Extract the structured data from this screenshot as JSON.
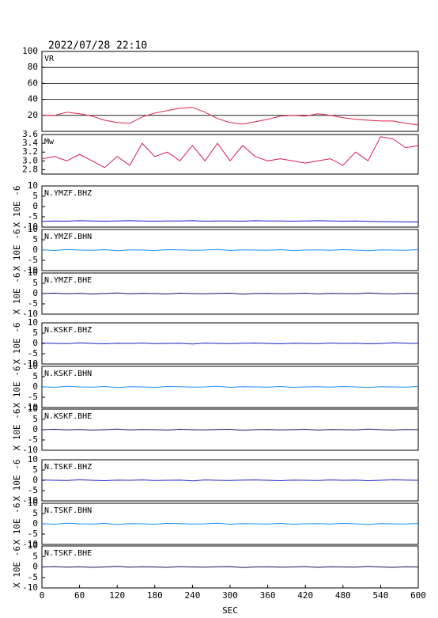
{
  "chart_data": {
    "type": "line",
    "title": "2022/07/28 22:10",
    "xlabel": "SEC",
    "xlim": [
      0,
      600
    ],
    "xticks": [
      0,
      60,
      120,
      180,
      240,
      300,
      360,
      420,
      480,
      540,
      600
    ],
    "x": [
      0,
      20,
      40,
      60,
      80,
      100,
      120,
      140,
      160,
      180,
      200,
      220,
      240,
      260,
      280,
      300,
      320,
      340,
      360,
      380,
      400,
      420,
      440,
      460,
      480,
      500,
      520,
      540,
      560,
      580,
      600
    ],
    "panels": [
      {
        "name": "VR",
        "color": "#e0204a",
        "ylim": [
          0,
          100
        ],
        "yticks": [
          20,
          40,
          60,
          80,
          100
        ],
        "grid": true,
        "values": [
          20,
          20,
          24,
          22,
          19,
          14,
          11,
          10,
          18,
          23,
          26,
          29,
          30,
          24,
          16,
          11,
          9,
          12,
          15,
          19,
          20,
          19,
          22,
          20,
          17,
          15,
          14,
          13,
          13,
          10,
          8
        ]
      },
      {
        "name": "Mw",
        "color": "#d81b50",
        "ylim": [
          2.7,
          3.6
        ],
        "yticks": [
          2.8,
          {
            "value": 3,
            "label": "3.0"
          },
          3.2,
          3.4,
          3.6
        ],
        "grid": false,
        "values": [
          3.05,
          3.1,
          3.0,
          3.15,
          3.0,
          2.85,
          3.1,
          2.9,
          3.4,
          3.1,
          3.2,
          3.0,
          3.35,
          3.0,
          3.4,
          3.0,
          3.35,
          3.1,
          3.0,
          3.05,
          3.0,
          2.95,
          3.0,
          3.05,
          2.9,
          3.2,
          3.0,
          3.55,
          3.5,
          3.3,
          3.35
        ]
      },
      {
        "name": "N.YMZF.BHZ",
        "ylabel": "X 10E -6",
        "color": "#1a1ac8",
        "ylim": [
          -10,
          10
        ],
        "yticks": [
          -10,
          -5,
          0,
          5,
          10
        ],
        "grid": false,
        "values": [
          -7.2,
          -7,
          -7.1,
          -6.9,
          -7,
          -7.1,
          -7,
          -6.9,
          -7,
          -7.1,
          -7,
          -7,
          -6.9,
          -7.1,
          -7,
          -7,
          -7.1,
          -6.9,
          -7,
          -7,
          -7.1,
          -7,
          -6.9,
          -7,
          -7.1,
          -7,
          -7.2,
          -7.3,
          -7.4,
          -7.5,
          -7.5
        ]
      },
      {
        "name": "N.YMZF.BHN",
        "ylabel": "X 10E -6",
        "color": "#1e90ff",
        "ylim": [
          -10,
          10
        ],
        "yticks": [
          -10,
          -5,
          0,
          5,
          10
        ],
        "grid": false,
        "values": [
          0.1,
          -0.2,
          0.3,
          0,
          -0.1,
          0.2,
          -0.3,
          0.1,
          0,
          -0.2,
          0.2,
          0.1,
          -0.1,
          0,
          0.3,
          -0.2,
          0.1,
          0,
          -0.1,
          0.2,
          -0.2,
          0,
          0.1,
          -0.1,
          0.2,
          0,
          -0.3,
          0.1,
          0,
          -0.1,
          0.2
        ]
      },
      {
        "name": "N.YMZF.BHE",
        "ylabel": "X 10E -6",
        "color": "#101060",
        "ylim": [
          -10,
          10
        ],
        "yticks": [
          -10,
          -5,
          0,
          5,
          10
        ],
        "grid": false,
        "values": [
          0,
          0.2,
          -0.1,
          0.1,
          -0.2,
          0,
          0.3,
          -0.1,
          0.1,
          0,
          -0.2,
          0.2,
          0,
          -0.1,
          0.1,
          0.2,
          -0.3,
          0,
          0.1,
          -0.1,
          0,
          0.2,
          -0.2,
          0.1,
          0,
          -0.1,
          0.3,
          0,
          -0.2,
          0.1,
          0
        ]
      },
      {
        "name": "N.KSKF.BHZ",
        "ylabel": "X 10E -6",
        "color": "#1a1ac8",
        "ylim": [
          -10,
          10
        ],
        "yticks": [
          -10,
          -5,
          0,
          5,
          10
        ],
        "grid": false,
        "values": [
          0.2,
          0,
          -0.1,
          0.3,
          0,
          -0.2,
          0.1,
          0,
          0.2,
          -0.1,
          0,
          0.1,
          -0.3,
          0.2,
          0,
          -0.1,
          0.1,
          0.2,
          0,
          -0.2,
          0.1,
          0,
          -0.1,
          0.2,
          0,
          0.1,
          -0.2,
          0,
          0.3,
          0.1,
          0
        ]
      },
      {
        "name": "N.KSKF.BHN",
        "ylabel": "X 10E -6",
        "color": "#1e90ff",
        "ylim": [
          -10,
          10
        ],
        "yticks": [
          -10,
          -5,
          0,
          5,
          10
        ],
        "grid": false,
        "values": [
          0.1,
          -0.2,
          0.3,
          0,
          -0.1,
          0.2,
          -0.3,
          0.1,
          0,
          -0.2,
          0.2,
          0.1,
          -0.1,
          0,
          0.3,
          -0.2,
          0.1,
          0,
          -0.1,
          0.2,
          -0.2,
          0,
          0.1,
          -0.1,
          0.2,
          0,
          -0.3,
          0.1,
          0,
          -0.1,
          0.2
        ]
      },
      {
        "name": "N.KSKF.BHE",
        "ylabel": "X 10E -6",
        "color": "#101060",
        "ylim": [
          -10,
          10
        ],
        "yticks": [
          -10,
          -5,
          0,
          5,
          10
        ],
        "grid": false,
        "values": [
          0,
          0.2,
          -0.1,
          0.1,
          -0.2,
          0,
          0.3,
          -0.1,
          0.1,
          0,
          -0.2,
          0.2,
          0,
          -0.1,
          0.1,
          0.2,
          -0.3,
          0,
          0.1,
          -0.1,
          0,
          0.2,
          -0.2,
          0.1,
          0,
          -0.1,
          0.3,
          0,
          -0.2,
          0.1,
          0
        ]
      },
      {
        "name": "N.TSKF.BHZ",
        "ylabel": "X 10E -6",
        "color": "#1a1ac8",
        "ylim": [
          -10,
          10
        ],
        "yticks": [
          -10,
          -5,
          0,
          5,
          10
        ],
        "grid": false,
        "values": [
          0.2,
          0,
          -0.1,
          0.3,
          0,
          -0.2,
          0.1,
          0,
          0.2,
          -0.1,
          0,
          0.1,
          -0.3,
          0.2,
          0,
          -0.1,
          0.1,
          0.2,
          0,
          -0.2,
          0.1,
          0,
          -0.1,
          0.2,
          0,
          0.1,
          -0.2,
          0,
          0.3,
          0.1,
          0
        ]
      },
      {
        "name": "N.TSKF.BHN",
        "ylabel": "X 10E -6",
        "color": "#1e90ff",
        "ylim": [
          -10,
          10
        ],
        "yticks": [
          -10,
          -5,
          0,
          5,
          10
        ],
        "grid": false,
        "values": [
          0.1,
          -0.2,
          0.3,
          0,
          -0.1,
          0.2,
          -0.3,
          0.1,
          0,
          -0.2,
          0.2,
          0.1,
          -0.1,
          0,
          0.3,
          -0.2,
          0.1,
          0,
          -0.1,
          0.2,
          -0.2,
          0,
          0.1,
          -0.1,
          0.2,
          0,
          -0.3,
          0.1,
          0,
          -0.1,
          0.2
        ]
      },
      {
        "name": "N.TSKF.BHE",
        "ylabel": "X 10E -6",
        "color": "#101060",
        "ylim": [
          -10,
          10
        ],
        "yticks": [
          -10,
          -5,
          0,
          5,
          10
        ],
        "grid": false,
        "values": [
          0,
          0.2,
          -0.1,
          0.1,
          -0.2,
          0,
          0.3,
          -0.1,
          0.1,
          0,
          -0.2,
          0.2,
          0,
          -0.1,
          0.1,
          0.2,
          -0.3,
          0,
          0.1,
          -0.1,
          0,
          0.2,
          -0.2,
          0.1,
          0,
          -0.1,
          0.3,
          0,
          -0.2,
          0.1,
          0
        ]
      }
    ]
  }
}
